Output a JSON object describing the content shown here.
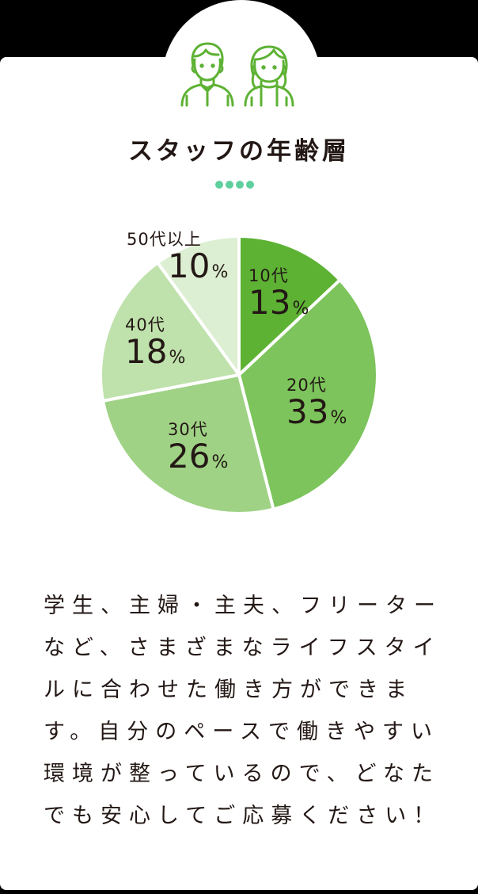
{
  "header": {
    "icon": "staff-people-icon",
    "title": "スタッフの年齢層"
  },
  "decor": {
    "dots_color": "#5fcf9e",
    "dots_count": 4
  },
  "chart_data": {
    "type": "pie",
    "title": "スタッフの年齢層",
    "categories": [
      "10代",
      "20代",
      "30代",
      "40代",
      "50代以上"
    ],
    "values": [
      13,
      33,
      26,
      18,
      10
    ],
    "unit": "%",
    "colors": [
      "#5db234",
      "#7cc45b",
      "#9fd285",
      "#bfe1ac",
      "#dcefd2"
    ],
    "start_angle_deg": 0,
    "direction": "clockwise",
    "legend": "none (labels inside slices)"
  },
  "labels": [
    {
      "age": "10代",
      "pct": "13",
      "unit": "%"
    },
    {
      "age": "20代",
      "pct": "33",
      "unit": "%"
    },
    {
      "age": "30代",
      "pct": "26",
      "unit": "%"
    },
    {
      "age": "40代",
      "pct": "18",
      "unit": "%"
    },
    {
      "age": "50代以上",
      "pct": "10",
      "unit": "%"
    }
  ],
  "description": {
    "lines": [
      "学生、主婦・主夫、フリーター",
      "など、さまざまなライフスタイ",
      "ルに合わせた働き方ができま",
      "す。自分のペースで働きやすい",
      "環境が整っているので、どなた",
      "でも安心してご応募ください！"
    ]
  }
}
